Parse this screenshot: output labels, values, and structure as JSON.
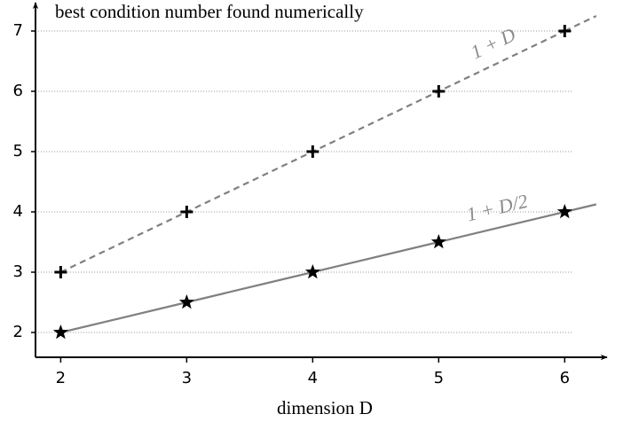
{
  "chart_data": {
    "type": "line",
    "title": "best condition number found numerically",
    "x_label": "dimension D",
    "x": [
      2,
      3,
      4,
      5,
      6
    ],
    "series": [
      {
        "name": "1 + D",
        "color": "#808080",
        "marker_color": "#000000",
        "marker": "plus",
        "dash": true,
        "values": [
          3,
          4,
          5,
          6,
          7
        ]
      },
      {
        "name": "1 + D/2",
        "color": "#808080",
        "marker_color": "#000000",
        "marker": "star",
        "dash": false,
        "values": [
          2,
          2.5,
          3,
          3.5,
          4
        ]
      }
    ],
    "xlim": [
      1.8,
      6.35
    ],
    "ylim": [
      1.6,
      7.45
    ],
    "xticks": [
      2,
      3,
      4,
      5,
      6
    ],
    "yticks": [
      2,
      3,
      4,
      5,
      6,
      7
    ],
    "grid": true
  }
}
